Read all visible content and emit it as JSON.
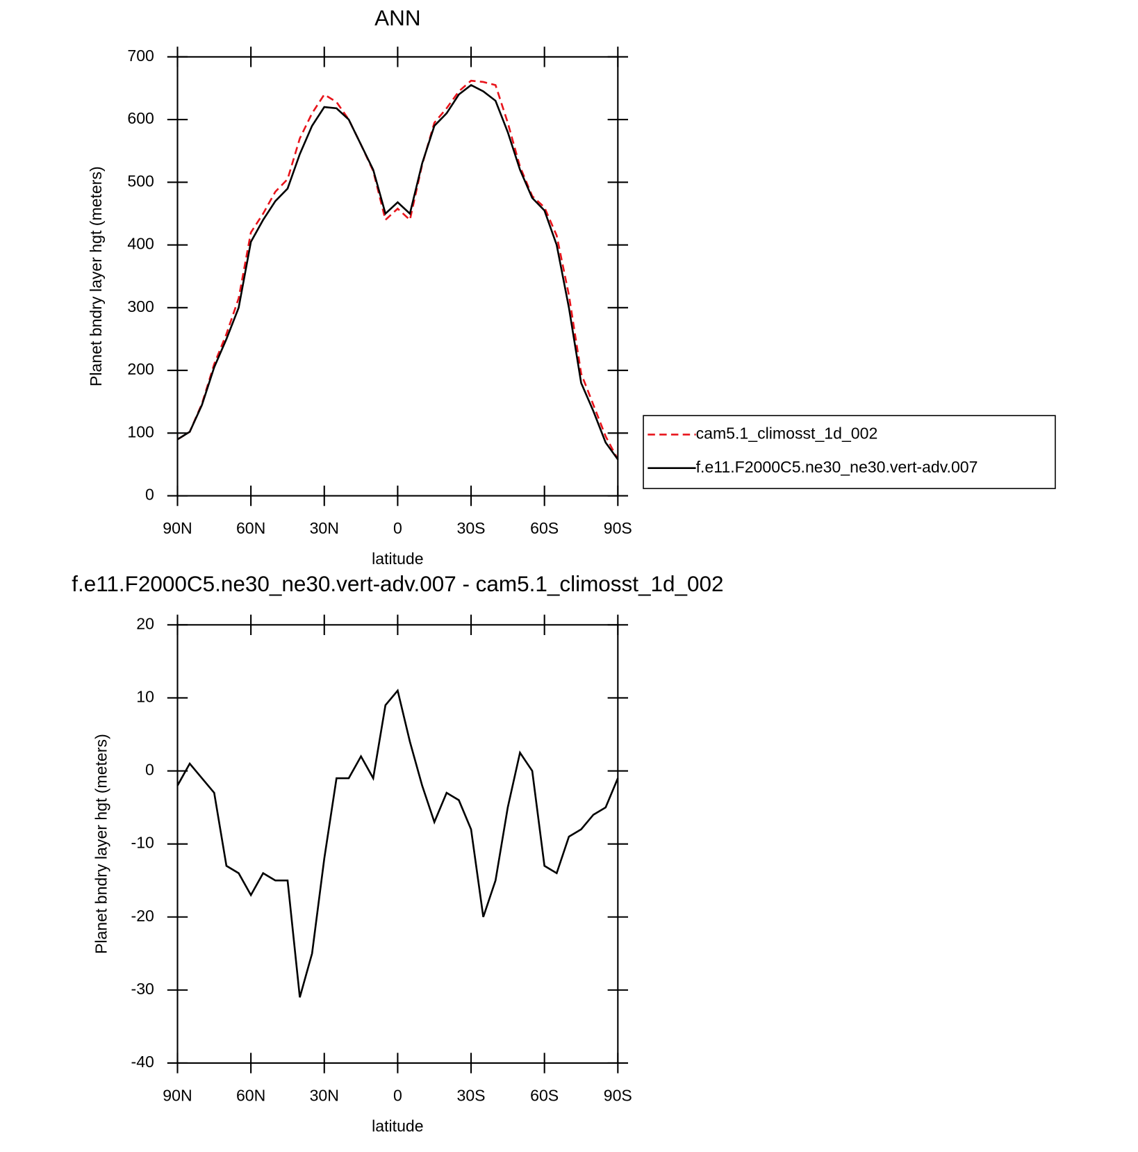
{
  "chart_data": [
    {
      "type": "line",
      "title": "ANN",
      "x_label": "latitude",
      "y_label": "Planet bndry layer hgt (meters)",
      "x": [
        90,
        85,
        80,
        75,
        70,
        65,
        60,
        55,
        50,
        45,
        40,
        35,
        30,
        25,
        20,
        15,
        10,
        5,
        0,
        -5,
        -10,
        -15,
        -20,
        -25,
        -30,
        -35,
        -40,
        -45,
        -50,
        -55,
        -60,
        -65,
        -70,
        -75,
        -80,
        -85,
        -90
      ],
      "series": [
        {
          "name": "cam5.1_climosst_1d_002",
          "color": "#e8141b",
          "line_style": "dashed",
          "values": [
            90,
            102,
            147,
            210,
            258,
            315,
            420,
            450,
            485,
            505,
            570,
            610,
            640,
            628,
            600,
            560,
            518,
            440,
            458,
            440,
            528,
            595,
            618,
            645,
            662,
            660,
            655,
            595,
            525,
            478,
            460,
            415,
            320,
            195,
            145,
            95,
            58
          ]
        },
        {
          "name": "f.e11.F2000C5.ne30_ne30.vert-adv.007",
          "color": "#000000",
          "line_style": "solid",
          "values": [
            90,
            102,
            145,
            205,
            250,
            300,
            405,
            440,
            470,
            490,
            545,
            590,
            620,
            618,
            600,
            560,
            520,
            450,
            468,
            450,
            530,
            590,
            610,
            640,
            655,
            645,
            630,
            580,
            520,
            475,
            455,
            400,
            300,
            180,
            135,
            85,
            58
          ]
        }
      ],
      "xlim": [
        90,
        -90
      ],
      "xticks": [
        {
          "value": 90,
          "label": "90N"
        },
        {
          "value": 60,
          "label": "60N"
        },
        {
          "value": 30,
          "label": "30N"
        },
        0,
        {
          "value": -30,
          "label": "30S"
        },
        {
          "value": -60,
          "label": "60S"
        },
        {
          "value": -90,
          "label": "90S"
        }
      ],
      "ylim": [
        0,
        700
      ],
      "yticks": [
        0,
        100,
        200,
        300,
        400,
        500,
        600,
        700
      ]
    },
    {
      "type": "line",
      "title": "f.e11.F2000C5.ne30_ne30.vert-adv.007 - cam5.1_climosst_1d_002",
      "x_label": "latitude",
      "y_label": "Planet bndry layer hgt (meters)",
      "x": [
        90,
        85,
        80,
        75,
        70,
        65,
        60,
        55,
        50,
        45,
        40,
        35,
        30,
        25,
        20,
        15,
        10,
        5,
        0,
        -5,
        -10,
        -15,
        -20,
        -25,
        -30,
        -35,
        -40,
        -45,
        -50,
        -55,
        -60,
        -65,
        -70,
        -75,
        -80,
        -85,
        -90
      ],
      "series": [
        {
          "color": "#000000",
          "line_style": "solid",
          "values": [
            -2,
            1,
            -1,
            -3,
            -13,
            -14,
            -17,
            -14,
            -15,
            -15,
            -31,
            -25,
            -12,
            -1,
            -1,
            2,
            -1,
            9,
            11,
            4,
            -2,
            -7,
            -3,
            -4,
            -8,
            -20,
            -15,
            -5,
            2.5,
            0,
            -13,
            -14,
            -9,
            -8,
            -6,
            -5,
            -1
          ]
        }
      ],
      "xlim": [
        90,
        -90
      ],
      "xticks": [
        {
          "value": 90,
          "label": "90N"
        },
        {
          "value": 60,
          "label": "60N"
        },
        {
          "value": 30,
          "label": "30N"
        },
        0,
        {
          "value": -30,
          "label": "30S"
        },
        {
          "value": -60,
          "label": "60S"
        },
        {
          "value": -90,
          "label": "90S"
        }
      ],
      "ylim": [
        -40,
        20
      ],
      "yticks": [
        -40,
        -30,
        -20,
        -10,
        0,
        10,
        20
      ]
    }
  ]
}
